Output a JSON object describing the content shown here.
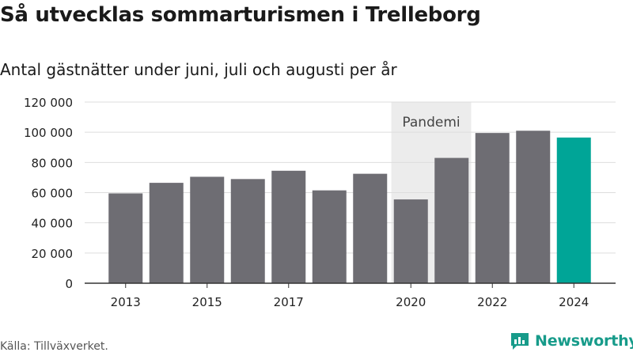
{
  "title": "Så utvecklas sommarturismen i Trelleborg",
  "subtitle": "Antal gästnätter under juni, juli och augusti per år",
  "source": "Källa: Tillväxverket.",
  "brand": {
    "name": "Newsworthy",
    "icon": "newsworthy-logo-icon",
    "color": "#179b8a"
  },
  "colors": {
    "bar": "#6e6d73",
    "highlight": "#00a597",
    "band": "#ececec",
    "grid": "#dddddd"
  },
  "chart_data": {
    "type": "bar",
    "categories": [
      "2013",
      "2014",
      "2015",
      "2016",
      "2017",
      "2018",
      "2019",
      "2020",
      "2021",
      "2022",
      "2023",
      "2024"
    ],
    "values": [
      59500,
      66500,
      70500,
      69000,
      74500,
      61500,
      72500,
      55500,
      83000,
      99500,
      101000,
      96500
    ],
    "highlight_category": "2024",
    "x_tick_labels": [
      "2013",
      "2015",
      "2017",
      "2020",
      "2022",
      "2024"
    ],
    "y_ticks": [
      0,
      20000,
      40000,
      60000,
      80000,
      100000,
      120000
    ],
    "y_tick_labels": [
      "0",
      "20 000",
      "40 000",
      "60 000",
      "80 000",
      "100 000",
      "120 000"
    ],
    "ylim": [
      0,
      120000
    ],
    "grid": true,
    "annotation": {
      "label": "Pandemi",
      "from": "2020",
      "to": "2021"
    }
  }
}
